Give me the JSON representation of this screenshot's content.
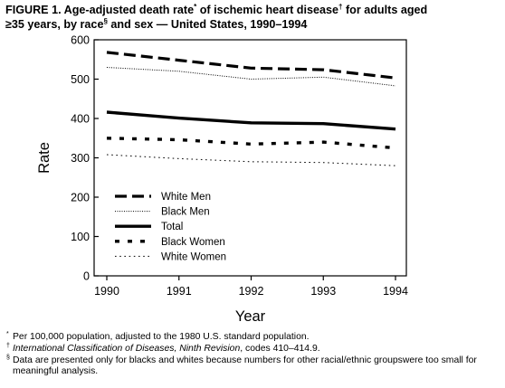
{
  "figure": {
    "title_line1": "FIGURE 1. Age-adjusted death rate",
    "title_mark1": "*",
    "title_line1b": " of ischemic heart disease",
    "title_mark2": "†",
    "title_line1c": " for adults aged",
    "title_line2a": "≥35 years, by race",
    "title_mark3": "§",
    "title_line2b": " and sex — United States, 1990–1994"
  },
  "chart_data": {
    "type": "line",
    "xlabel": "Year",
    "ylabel": "Rate",
    "xlim": [
      1990,
      1994
    ],
    "ylim": [
      0,
      600
    ],
    "x_ticks": [
      "1990",
      "1991",
      "1992",
      "1993",
      "1994"
    ],
    "y_ticks": [
      "0",
      "100",
      "200",
      "300",
      "400",
      "500",
      "600"
    ],
    "x": [
      1990,
      1991,
      1992,
      1993,
      1994
    ],
    "series": [
      {
        "name": "White Men",
        "style": "long-dash",
        "values": [
          568,
          548,
          528,
          524,
          503
        ]
      },
      {
        "name": "Black Men",
        "style": "fine-dot",
        "values": [
          530,
          520,
          500,
          505,
          483
        ]
      },
      {
        "name": "Total",
        "style": "solid-thick",
        "values": [
          416,
          401,
          389,
          387,
          373
        ]
      },
      {
        "name": "Black Women",
        "style": "short-dash",
        "values": [
          350,
          346,
          335,
          340,
          325
        ]
      },
      {
        "name": "White Women",
        "style": "sparse-dot",
        "values": [
          308,
          298,
          290,
          288,
          280
        ]
      }
    ],
    "legend_position": "bottom-left",
    "grid": false
  },
  "footnotes": {
    "fn1_mark": "*",
    "fn1_text": "Per 100,000 population, adjusted to the 1980 U.S. standard population.",
    "fn2_mark": "†",
    "fn2_italic": "International Classification of Diseases, Ninth Revision",
    "fn2_text": ", codes 410–414.9.",
    "fn3_mark": "§",
    "fn3_line1": "Data are presented only for blacks and whites because numbers for other racial/ethnic groups",
    "fn3_line2": "were too small for meaningful analysis."
  }
}
